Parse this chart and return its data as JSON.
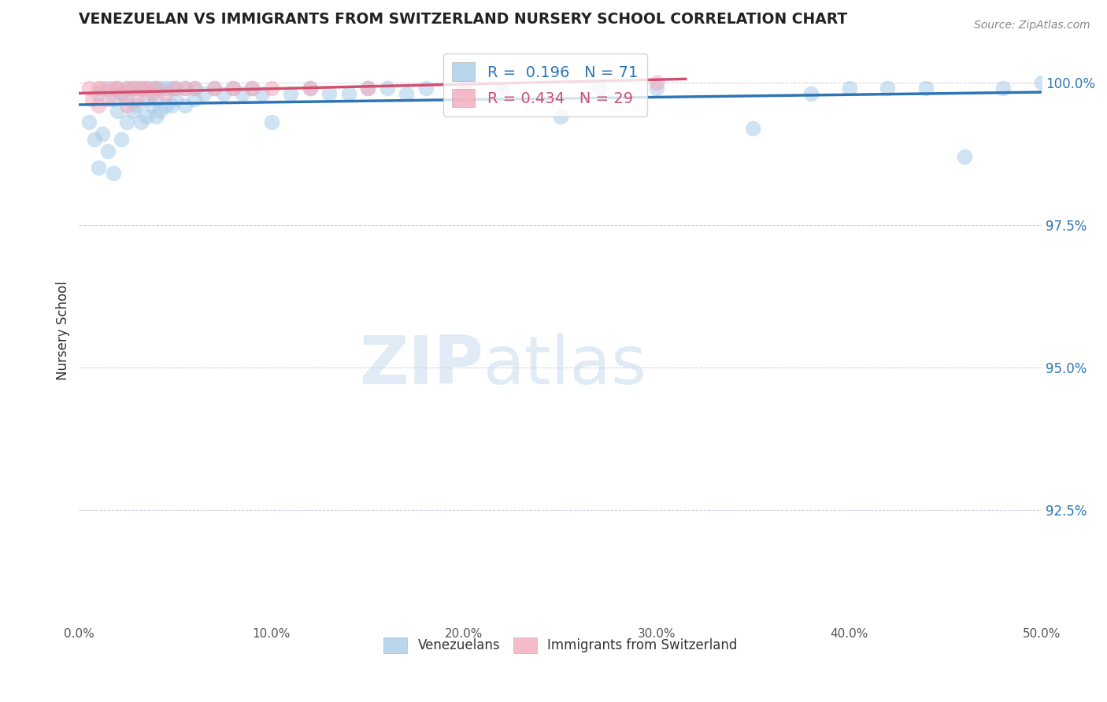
{
  "title": "VENEZUELAN VS IMMIGRANTS FROM SWITZERLAND NURSERY SCHOOL CORRELATION CHART",
  "source": "Source: ZipAtlas.com",
  "ylabel": "Nursery School",
  "xlim": [
    0.0,
    0.5
  ],
  "ylim": [
    0.905,
    1.008
  ],
  "yticks": [
    0.925,
    0.95,
    0.975,
    1.0
  ],
  "ytick_labels": [
    "92.5%",
    "95.0%",
    "97.5%",
    "100.0%"
  ],
  "xticks": [
    0.0,
    0.1,
    0.2,
    0.3,
    0.4,
    0.5
  ],
  "xtick_labels": [
    "0.0%",
    "10.0%",
    "20.0%",
    "30.0%",
    "40.0%",
    "50.0%"
  ],
  "blue_R": 0.196,
  "blue_N": 71,
  "pink_R": 0.434,
  "pink_N": 29,
  "blue_color": "#A8CCE8",
  "pink_color": "#F4AABB",
  "blue_line_color": "#2E75B6",
  "pink_line_color": "#D05070",
  "legend_label_blue": "Venezuelans",
  "legend_label_pink": "Immigrants from Switzerland",
  "blue_x": [
    0.005,
    0.008,
    0.01,
    0.01,
    0.012,
    0.015,
    0.015,
    0.018,
    0.018,
    0.02,
    0.02,
    0.022,
    0.022,
    0.025,
    0.025,
    0.025,
    0.028,
    0.028,
    0.03,
    0.03,
    0.032,
    0.032,
    0.035,
    0.035,
    0.035,
    0.038,
    0.038,
    0.04,
    0.04,
    0.04,
    0.042,
    0.042,
    0.045,
    0.045,
    0.048,
    0.048,
    0.05,
    0.05,
    0.055,
    0.055,
    0.06,
    0.06,
    0.065,
    0.07,
    0.075,
    0.08,
    0.085,
    0.09,
    0.095,
    0.1,
    0.11,
    0.12,
    0.13,
    0.14,
    0.15,
    0.16,
    0.17,
    0.18,
    0.2,
    0.22,
    0.25,
    0.27,
    0.3,
    0.35,
    0.38,
    0.4,
    0.42,
    0.44,
    0.46,
    0.48,
    0.5
  ],
  "blue_y": [
    0.993,
    0.99,
    0.998,
    0.985,
    0.991,
    0.999,
    0.988,
    0.997,
    0.984,
    0.999,
    0.995,
    0.998,
    0.99,
    0.999,
    0.997,
    0.993,
    0.999,
    0.995,
    0.999,
    0.996,
    0.999,
    0.993,
    0.999,
    0.997,
    0.994,
    0.999,
    0.996,
    0.999,
    0.997,
    0.994,
    0.999,
    0.995,
    0.999,
    0.996,
    0.999,
    0.996,
    0.999,
    0.997,
    0.999,
    0.996,
    0.999,
    0.997,
    0.998,
    0.999,
    0.998,
    0.999,
    0.998,
    0.999,
    0.998,
    0.993,
    0.998,
    0.999,
    0.998,
    0.998,
    0.999,
    0.999,
    0.998,
    0.999,
    0.999,
    0.999,
    0.994,
    0.999,
    0.999,
    0.992,
    0.998,
    0.999,
    0.999,
    0.999,
    0.987,
    0.999,
    1.0
  ],
  "pink_x": [
    0.005,
    0.007,
    0.01,
    0.01,
    0.012,
    0.015,
    0.018,
    0.02,
    0.022,
    0.025,
    0.025,
    0.028,
    0.03,
    0.032,
    0.035,
    0.038,
    0.04,
    0.045,
    0.05,
    0.055,
    0.06,
    0.07,
    0.08,
    0.09,
    0.1,
    0.12,
    0.15,
    0.2,
    0.3
  ],
  "pink_y": [
    0.999,
    0.997,
    0.999,
    0.996,
    0.999,
    0.997,
    0.999,
    0.999,
    0.998,
    0.999,
    0.996,
    0.999,
    0.997,
    0.999,
    0.999,
    0.998,
    0.999,
    0.998,
    0.999,
    0.999,
    0.999,
    0.999,
    0.999,
    0.999,
    0.999,
    0.999,
    0.999,
    1.0,
    1.0
  ],
  "background_color": "#FFFFFF"
}
